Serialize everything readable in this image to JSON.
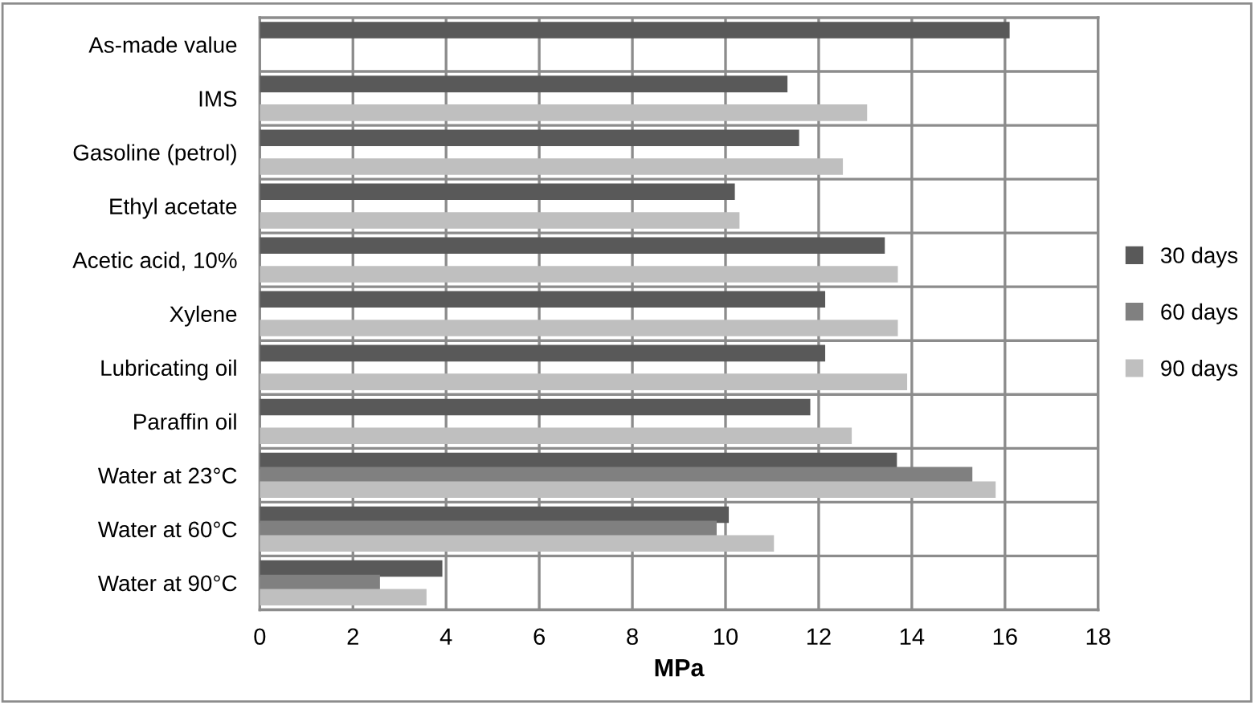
{
  "chart_data": {
    "type": "bar",
    "orientation": "horizontal",
    "xlabel": "MPa",
    "categories": [
      "As-made value",
      "IMS",
      "Gasoline (petrol)",
      "Ethyl acetate",
      "Acetic acid, 10%",
      "Xylene",
      "Lubricating oil",
      "Paraffin oil",
      "Water at 23°C",
      "Water at 60°C",
      "Water at 90°C"
    ],
    "series": [
      {
        "name": "30 days",
        "color": "#595959",
        "values": [
          16.1,
          11.33,
          11.58,
          10.2,
          13.42,
          12.14,
          12.14,
          11.82,
          13.68,
          10.07,
          3.92
        ]
      },
      {
        "name": "60 days",
        "color": "#808080",
        "values": [
          null,
          null,
          null,
          null,
          null,
          null,
          null,
          null,
          15.3,
          9.81,
          2.58
        ]
      },
      {
        "name": "90 days",
        "color": "#bfbfbf",
        "values": [
          null,
          13.04,
          12.52,
          10.3,
          13.7,
          13.7,
          13.9,
          12.71,
          15.8,
          11.04,
          3.58
        ]
      }
    ],
    "xlim": [
      0,
      18
    ],
    "xticks": [
      0,
      2,
      4,
      6,
      8,
      10,
      12,
      14,
      16,
      18
    ],
    "grid": true,
    "legend": "right"
  }
}
